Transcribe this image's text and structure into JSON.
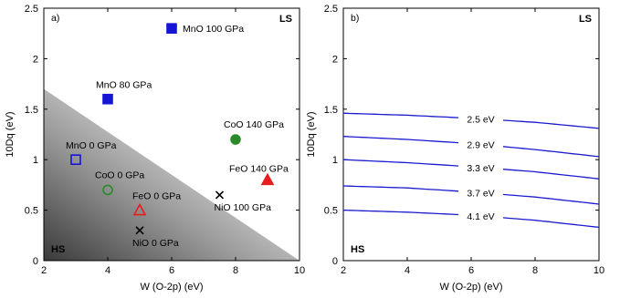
{
  "chart_data": [
    {
      "type": "scatter",
      "panel_label": "a)",
      "xlabel": "W (O-2p) (eV)",
      "ylabel": "10Dq (eV)",
      "xlim": [
        2,
        10
      ],
      "ylim": [
        0,
        2.5
      ],
      "xticks": [
        "2",
        "4",
        "6",
        "8",
        "10"
      ],
      "yticks": [
        "0",
        "0.5",
        "1",
        "1.5",
        "2",
        "2.5"
      ],
      "region_labels": {
        "top_right": "LS",
        "bottom_left": "HS"
      },
      "hs_region_boundary": [
        [
          2,
          1.7
        ],
        [
          10,
          0
        ]
      ],
      "points": [
        {
          "label": "MnO 100 GPa",
          "x": 6.0,
          "y": 2.3,
          "marker": "square",
          "filled": true,
          "color": "#1515d6"
        },
        {
          "label": "MnO 80 GPa",
          "x": 4.0,
          "y": 1.6,
          "marker": "square",
          "filled": true,
          "color": "#1515d6"
        },
        {
          "label": "MnO 0 GPa",
          "x": 3.0,
          "y": 1.0,
          "marker": "square",
          "filled": false,
          "color": "#1515d6"
        },
        {
          "label": "CoO 140 GPa",
          "x": 8.0,
          "y": 1.2,
          "marker": "circle",
          "filled": true,
          "color": "#2a8a2a"
        },
        {
          "label": "CoO 0 GPa",
          "x": 4.0,
          "y": 0.7,
          "marker": "circle",
          "filled": false,
          "color": "#2a8a2a"
        },
        {
          "label": "FeO 140 GPa",
          "x": 9.0,
          "y": 0.8,
          "marker": "triangle",
          "filled": true,
          "color": "#e81c1c"
        },
        {
          "label": "FeO 0 GPa",
          "x": 5.0,
          "y": 0.5,
          "marker": "triangle",
          "filled": false,
          "color": "#e81c1c"
        },
        {
          "label": "NiO 100 GPa",
          "x": 7.5,
          "y": 0.65,
          "marker": "cross",
          "filled": false,
          "color": "#000000"
        },
        {
          "label": "NiO 0 GPa",
          "x": 5.0,
          "y": 0.3,
          "marker": "cross",
          "filled": false,
          "color": "#000000"
        }
      ]
    },
    {
      "type": "line",
      "panel_label": "b)",
      "xlabel": "W (O-2p) (eV)",
      "ylabel": "10Dq (eV)",
      "xlim": [
        2,
        10
      ],
      "ylim": [
        0,
        2.5
      ],
      "xticks": [
        "2",
        "4",
        "6",
        "8",
        "10"
      ],
      "yticks": [
        "0",
        "0.5",
        "1",
        "1.5",
        "2",
        "2.5"
      ],
      "region_labels": {
        "top_right": "LS",
        "bottom_left": "HS"
      },
      "line_color": "#1a1ad0",
      "label_gap": [
        5.6,
        7.0
      ],
      "series": [
        {
          "name": "2.5 eV",
          "x": [
            2,
            4,
            6,
            8,
            10
          ],
          "y": [
            1.46,
            1.44,
            1.41,
            1.37,
            1.31
          ]
        },
        {
          "name": "2.9 eV",
          "x": [
            2,
            4,
            6,
            8,
            10
          ],
          "y": [
            1.23,
            1.2,
            1.16,
            1.1,
            1.03
          ]
        },
        {
          "name": "3.3 eV",
          "x": [
            2,
            4,
            6,
            8,
            10
          ],
          "y": [
            1.0,
            0.97,
            0.93,
            0.88,
            0.81
          ]
        },
        {
          "name": "3.7 eV",
          "x": [
            2,
            4,
            6,
            8,
            10
          ],
          "y": [
            0.74,
            0.72,
            0.68,
            0.63,
            0.56
          ]
        },
        {
          "name": "4.1 eV",
          "x": [
            2,
            4,
            6,
            8,
            10
          ],
          "y": [
            0.5,
            0.48,
            0.45,
            0.4,
            0.33
          ]
        }
      ]
    }
  ]
}
